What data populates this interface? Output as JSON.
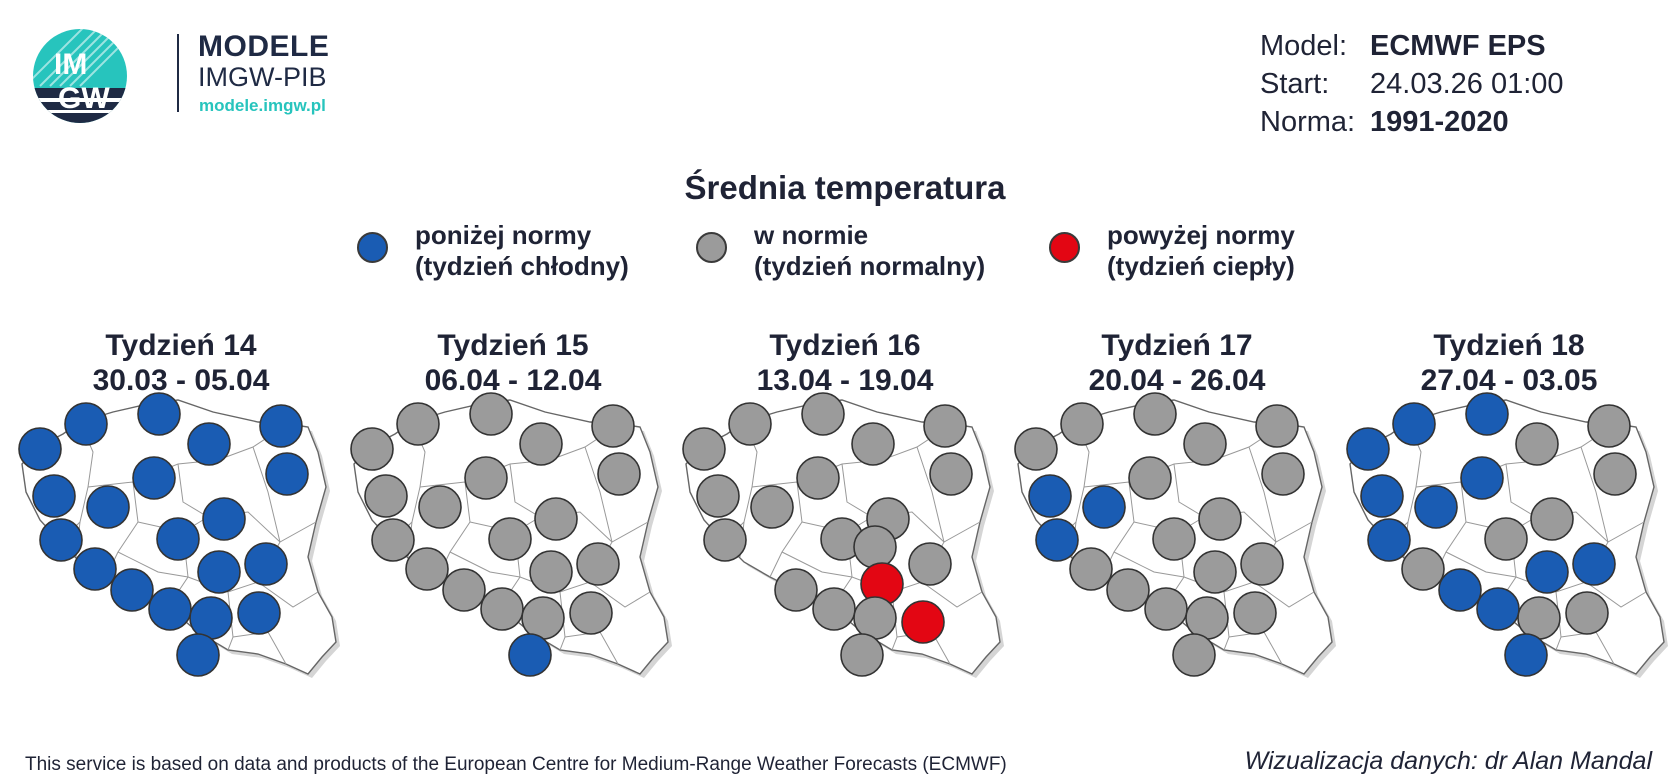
{
  "header": {
    "logo": {
      "mark_text": "IMGW",
      "name": "MODELE",
      "subtitle": "IMGW-PIB",
      "url": "modele.imgw.pl",
      "colors": {
        "teal": "#27c4bd",
        "navy": "#1f2a44"
      }
    },
    "info": [
      {
        "label": "Model:",
        "value": "ECMWF EPS",
        "bold": true
      },
      {
        "label": "Start:",
        "value": "24.03.26 01:00",
        "bold": false
      },
      {
        "label": "Norma:",
        "value": "1991-2020",
        "bold": true
      }
    ]
  },
  "title": "Średnia temperatura",
  "legend": [
    {
      "key": "below",
      "line1": "poniżej normy",
      "line2": "(tydzień chłodny)",
      "color": "#1a5cb3"
    },
    {
      "key": "normal",
      "line1": "w normie",
      "line2": "(tydzień normalny)",
      "color": "#9b9b9b"
    },
    {
      "key": "above",
      "line1": "powyżej normy",
      "line2": "(tydzień ciepły)",
      "color": "#e30613"
    }
  ],
  "weeks": [
    {
      "title": "Tydzień 14",
      "dates": "30.03 - 05.04",
      "stations": [
        "below",
        "below",
        "below",
        "below",
        "below",
        "below",
        "below",
        "below",
        "below",
        "below",
        "below",
        "below",
        "below",
        "below",
        "below",
        "below",
        "below",
        "below",
        "below",
        "below",
        "below",
        "below",
        "below"
      ]
    },
    {
      "title": "Tydzień 15",
      "dates": "06.04 - 12.04",
      "stations": [
        "normal",
        "normal",
        "normal",
        "normal",
        "normal",
        "normal",
        "normal",
        "normal",
        "normal",
        "normal",
        "normal",
        "normal",
        "normal",
        "normal",
        "normal",
        "normal",
        "normal",
        "normal",
        "normal",
        "normal",
        "normal",
        "normal",
        "below"
      ]
    },
    {
      "title": "Tydzień 16",
      "dates": "13.04 - 19.04",
      "stations": [
        "normal",
        "normal",
        "normal",
        "normal",
        "normal",
        "normal",
        "normal",
        "normal",
        "normal",
        "normal",
        "normal",
        "normal",
        "normal",
        "normal",
        "above",
        "normal",
        "normal",
        "normal",
        "normal",
        "normal",
        "normal",
        "above",
        "normal"
      ]
    },
    {
      "title": "Tydzień 17",
      "dates": "20.04 - 26.04",
      "stations": [
        "normal",
        "normal",
        "normal",
        "normal",
        "normal",
        "normal",
        "normal",
        "normal",
        "normal",
        "below",
        "below",
        "normal",
        "normal",
        "below",
        "normal",
        "normal",
        "normal",
        "normal",
        "normal",
        "normal",
        "normal",
        "normal",
        "normal"
      ]
    },
    {
      "title": "Tydzień 18",
      "dates": "27.04 - 03.05",
      "stations": [
        "below",
        "below",
        "below",
        "normal",
        "normal",
        "below",
        "normal",
        "normal",
        "below",
        "below",
        "normal",
        "below",
        "normal",
        "normal",
        "normal",
        "below",
        "below",
        "below",
        "below",
        "normal",
        "normal",
        "normal",
        "below"
      ]
    }
  ],
  "footer": {
    "left": "This service is based on data and products of the European Centre for Medium-Range Weather Forecasts (ECMWF)",
    "right": "Wizualizacja danych: dr Alan Mandal"
  }
}
